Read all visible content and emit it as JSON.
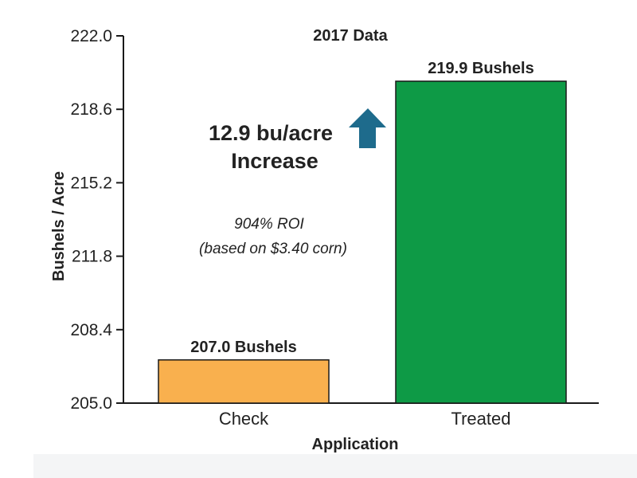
{
  "chart_data": {
    "type": "bar",
    "title": "2017 Data",
    "xlabel": "Application",
    "ylabel": "Bushels / Acre",
    "categories": [
      "Check",
      "Treated"
    ],
    "values": [
      207.0,
      219.9
    ],
    "data_labels": [
      "207.0 Bushels",
      "219.9 Bushels"
    ],
    "ylim": [
      205.0,
      222.0
    ],
    "yticks": [
      205.0,
      208.4,
      211.8,
      215.2,
      218.6,
      222.0
    ],
    "ytick_labels": [
      "205.0",
      "208.4",
      "211.8",
      "215.2",
      "218.6",
      "222.0"
    ],
    "grid": false,
    "bar_colors": [
      "#f9b04e",
      "#0e9a46"
    ],
    "annotations": {
      "increase_line1": "12.9 bu/acre",
      "increase_line2": "Increase",
      "roi_line1": "904% ROI",
      "roi_line2": "(based on $3.40 corn)",
      "arrow_icon": "up-arrow-icon",
      "arrow_color": "#1e6b8c"
    }
  }
}
